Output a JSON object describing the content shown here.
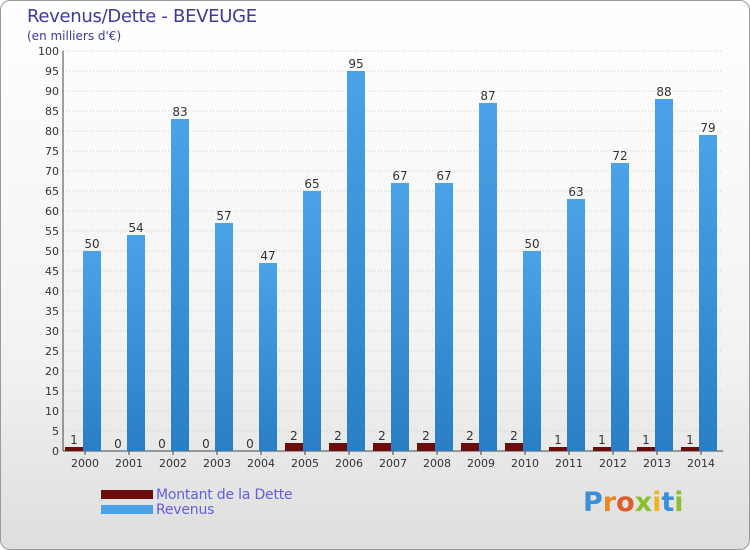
{
  "title": "Revenus/Dette - BEVEUGE",
  "subtitle": "(en milliers d'€)",
  "colors": {
    "debt": "#6b0d0d",
    "revenue": "#4aa3e6",
    "revenue_dark": "#2a7fc4",
    "axis_text": "#333333",
    "grid": "#cccccc"
  },
  "legend": [
    {
      "label": "Montant de la Dette",
      "color": "#6b0d0d"
    },
    {
      "label": "Revenus",
      "color": "#4aa3e6"
    }
  ],
  "brand": {
    "text": "Proxiti"
  },
  "chart_data": {
    "type": "bar",
    "title": "Revenus/Dette - BEVEUGE",
    "ylabel": "(en milliers d'€)",
    "xlabel": "",
    "categories": [
      "2000",
      "2001",
      "2002",
      "2003",
      "2004",
      "2005",
      "2006",
      "2007",
      "2008",
      "2009",
      "2010",
      "2011",
      "2012",
      "2013",
      "2014"
    ],
    "series": [
      {
        "name": "Montant de la Dette",
        "values": [
          1,
          0,
          0,
          0,
          0,
          2,
          2,
          2,
          2,
          2,
          2,
          1,
          1,
          1,
          1
        ]
      },
      {
        "name": "Revenus",
        "values": [
          50,
          54,
          83,
          57,
          47,
          65,
          95,
          67,
          67,
          87,
          50,
          63,
          72,
          88,
          79
        ]
      }
    ],
    "ylim": [
      0,
      100
    ],
    "yticks": [
      0,
      5,
      10,
      15,
      20,
      25,
      30,
      35,
      40,
      45,
      50,
      55,
      60,
      65,
      70,
      75,
      80,
      85,
      90,
      95,
      100
    ],
    "grid": true,
    "legend_position": "bottom-left"
  }
}
